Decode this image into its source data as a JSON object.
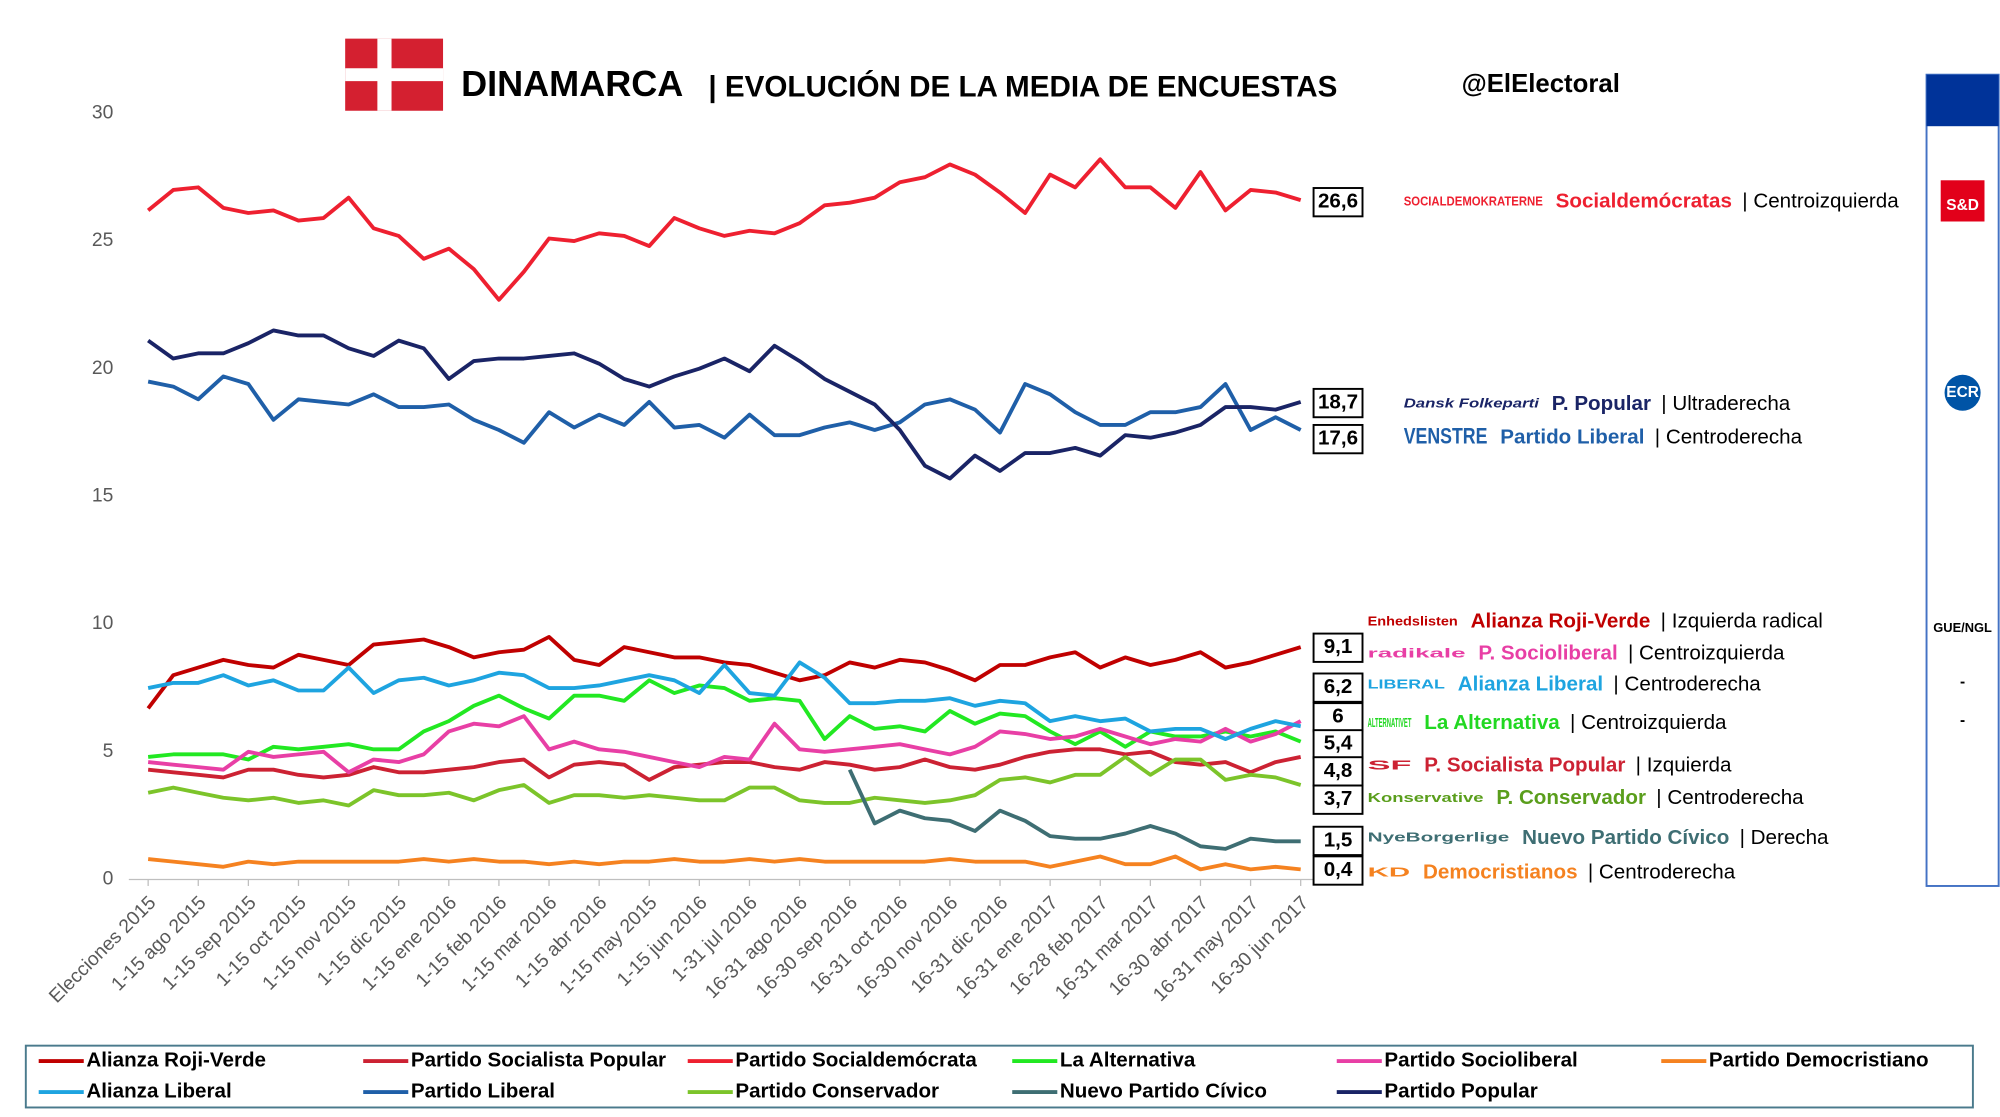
{
  "chart_data": {
    "type": "line",
    "title": "DINAMARCA",
    "subtitle": "| EVOLUCIÓN DE LA MEDIA DE ENCUESTAS",
    "source": "@ElElectoral",
    "categories": [
      "Elecciones 2015",
      null,
      "1-15 ago 2015",
      null,
      "1-15 sep 2015",
      null,
      "1-15 oct 2015",
      null,
      "1-15 nov 2015",
      null,
      "1-15 dic 2015",
      null,
      "1-15 ene 2016",
      null,
      "1-15 feb 2016",
      null,
      "1-15 mar 2016",
      null,
      "1-15 abr 2016",
      null,
      "1-15 may 2015",
      null,
      "1-15 jun 2016",
      null,
      "1-31 jul 2016",
      null,
      "16-31 ago 2016",
      null,
      "16-30 sep 2016",
      null,
      "16-31 oct 2016",
      null,
      "16-30 nov 2016",
      null,
      "16-31 dic 2016",
      null,
      "16-31 ene 2017",
      null,
      "16-28 feb 2017",
      null,
      "16-31 mar 2017",
      null,
      "16-30 abr 2017",
      null,
      "16-31 may 2017",
      null,
      "16-30 jun 2017"
    ],
    "ylim": [
      0,
      30
    ],
    "yticks": [
      0,
      5,
      10,
      15,
      20,
      25,
      30
    ],
    "grid": false,
    "series": [
      {
        "name": "Alianza Roji-Verde",
        "color": "#c00000",
        "values": [
          6.7,
          8.0,
          8.3,
          8.6,
          8.4,
          8.3,
          8.8,
          8.6,
          8.4,
          9.2,
          9.3,
          9.4,
          9.1,
          8.7,
          8.9,
          9.0,
          9.5,
          8.6,
          8.4,
          9.1,
          8.9,
          8.7,
          8.7,
          8.5,
          8.4,
          8.1,
          7.8,
          8.0,
          8.5,
          8.3,
          8.6,
          8.5,
          8.2,
          7.8,
          8.4,
          8.4,
          8.7,
          8.9,
          8.3,
          8.7,
          8.4,
          8.6,
          8.9,
          8.3,
          8.5,
          8.8,
          9.1
        ]
      },
      {
        "name": "Partido Socialista Popular",
        "color": "#cc2233",
        "values": [
          4.3,
          4.2,
          4.1,
          4.0,
          4.3,
          4.3,
          4.1,
          4.0,
          4.1,
          4.4,
          4.2,
          4.2,
          4.3,
          4.4,
          4.6,
          4.7,
          4.0,
          4.5,
          4.6,
          4.5,
          3.9,
          4.4,
          4.5,
          4.6,
          4.6,
          4.4,
          4.3,
          4.6,
          4.5,
          4.3,
          4.4,
          4.7,
          4.4,
          4.3,
          4.5,
          4.8,
          5.0,
          5.1,
          5.1,
          4.9,
          5.0,
          4.6,
          4.5,
          4.6,
          4.2,
          4.6,
          4.8
        ]
      },
      {
        "name": "Partido Socialdemócrata",
        "color": "#ee2030",
        "values": [
          26.2,
          27.0,
          27.1,
          26.3,
          26.1,
          26.2,
          25.8,
          25.9,
          26.7,
          25.5,
          25.2,
          24.3,
          24.7,
          23.9,
          22.7,
          23.8,
          25.1,
          25.0,
          25.3,
          25.2,
          24.8,
          25.9,
          25.5,
          25.2,
          25.4,
          25.3,
          25.7,
          26.4,
          26.5,
          26.7,
          27.3,
          27.5,
          28.0,
          27.6,
          26.9,
          26.1,
          27.6,
          27.1,
          28.2,
          27.1,
          27.1,
          26.3,
          27.7,
          26.2,
          27.0,
          26.9,
          26.6
        ]
      },
      {
        "name": "La Alternativa",
        "color": "#22e822",
        "values": [
          4.8,
          4.9,
          4.9,
          4.9,
          4.7,
          5.2,
          5.1,
          5.2,
          5.3,
          5.1,
          5.1,
          5.8,
          6.2,
          6.8,
          7.2,
          6.7,
          6.3,
          7.2,
          7.2,
          7.0,
          7.8,
          7.3,
          7.6,
          7.5,
          7.0,
          7.1,
          7.0,
          5.5,
          6.4,
          5.9,
          6.0,
          5.8,
          6.6,
          6.1,
          6.5,
          6.4,
          5.8,
          5.3,
          5.8,
          5.2,
          5.8,
          5.6,
          5.6,
          5.8,
          5.6,
          5.8,
          5.4
        ]
      },
      {
        "name": "Partido Socioliberal",
        "color": "#e83fa5",
        "values": [
          4.6,
          4.5,
          4.4,
          4.3,
          5.0,
          4.8,
          4.9,
          5.0,
          4.2,
          4.7,
          4.6,
          4.9,
          5.8,
          6.1,
          6.0,
          6.4,
          5.1,
          5.4,
          5.1,
          5.0,
          4.8,
          4.6,
          4.4,
          4.8,
          4.7,
          6.1,
          5.1,
          5.0,
          5.1,
          5.2,
          5.3,
          5.1,
          4.9,
          5.2,
          5.8,
          5.7,
          5.5,
          5.6,
          5.9,
          5.6,
          5.3,
          5.5,
          5.4,
          5.9,
          5.4,
          5.7,
          6.2
        ]
      },
      {
        "name": "Partido Democristiano",
        "color": "#f58220",
        "values": [
          0.8,
          0.7,
          0.6,
          0.5,
          0.7,
          0.6,
          0.7,
          0.7,
          0.7,
          0.7,
          0.7,
          0.8,
          0.7,
          0.8,
          0.7,
          0.7,
          0.6,
          0.7,
          0.6,
          0.7,
          0.7,
          0.8,
          0.7,
          0.7,
          0.8,
          0.7,
          0.8,
          0.7,
          0.7,
          0.7,
          0.7,
          0.7,
          0.8,
          0.7,
          0.7,
          0.7,
          0.5,
          0.7,
          0.9,
          0.6,
          0.6,
          0.9,
          0.4,
          0.6,
          0.4,
          0.5,
          0.4
        ]
      },
      {
        "name": "Alianza Liberal",
        "color": "#1ea4e0",
        "values": [
          7.5,
          7.7,
          7.7,
          8.0,
          7.6,
          7.8,
          7.4,
          7.4,
          8.3,
          7.3,
          7.8,
          7.9,
          7.6,
          7.8,
          8.1,
          8.0,
          7.5,
          7.5,
          7.6,
          7.8,
          8.0,
          7.8,
          7.3,
          8.4,
          7.3,
          7.2,
          8.5,
          7.9,
          6.9,
          6.9,
          7.0,
          7.0,
          7.1,
          6.8,
          7.0,
          6.9,
          6.2,
          6.4,
          6.2,
          6.3,
          5.8,
          5.9,
          5.9,
          5.5,
          5.9,
          6.2,
          6.0
        ]
      },
      {
        "name": "Partido Liberal",
        "color": "#1f5fa8",
        "values": [
          19.5,
          19.3,
          18.8,
          19.7,
          19.4,
          18.0,
          18.8,
          18.7,
          18.6,
          19.0,
          18.5,
          18.5,
          18.6,
          18.0,
          17.6,
          17.1,
          18.3,
          17.7,
          18.2,
          17.8,
          18.7,
          17.7,
          17.8,
          17.3,
          18.2,
          17.4,
          17.4,
          17.7,
          17.9,
          17.6,
          17.9,
          18.6,
          18.8,
          18.4,
          17.5,
          19.4,
          19.0,
          18.3,
          17.8,
          17.8,
          18.3,
          18.3,
          18.5,
          19.4,
          17.6,
          18.1,
          17.6
        ]
      },
      {
        "name": "Partido Conservador",
        "color": "#7cc42a",
        "values": [
          3.4,
          3.6,
          3.4,
          3.2,
          3.1,
          3.2,
          3.0,
          3.1,
          2.9,
          3.5,
          3.3,
          3.3,
          3.4,
          3.1,
          3.5,
          3.7,
          3.0,
          3.3,
          3.3,
          3.2,
          3.3,
          3.2,
          3.1,
          3.1,
          3.6,
          3.6,
          3.1,
          3.0,
          3.0,
          3.2,
          3.1,
          3.0,
          3.1,
          3.3,
          3.9,
          4.0,
          3.8,
          4.1,
          4.1,
          4.8,
          4.1,
          4.7,
          4.7,
          3.9,
          4.1,
          4.0,
          3.7
        ]
      },
      {
        "name": "Nuevo Partido Cívico",
        "color": "#3e6e73",
        "values": [
          null,
          null,
          null,
          null,
          null,
          null,
          null,
          null,
          null,
          null,
          null,
          null,
          null,
          null,
          null,
          null,
          null,
          null,
          null,
          null,
          null,
          null,
          null,
          null,
          null,
          null,
          null,
          null,
          4.3,
          2.2,
          2.7,
          2.4,
          2.3,
          1.9,
          2.7,
          2.3,
          1.7,
          1.6,
          1.6,
          1.8,
          2.1,
          1.8,
          1.3,
          1.2,
          1.6,
          1.5,
          1.5
        ]
      },
      {
        "name": "Partido Popular",
        "color": "#1a2466",
        "values": [
          21.1,
          20.4,
          20.6,
          20.6,
          21.0,
          21.5,
          21.3,
          21.3,
          20.8,
          20.5,
          21.1,
          20.8,
          19.6,
          20.3,
          20.4,
          20.4,
          20.5,
          20.6,
          20.2,
          19.6,
          19.3,
          19.7,
          20.0,
          20.4,
          19.9,
          20.9,
          20.3,
          19.6,
          19.1,
          18.6,
          17.6,
          16.2,
          15.7,
          16.6,
          16.0,
          16.7,
          16.7,
          16.9,
          16.6,
          17.4,
          17.3,
          17.5,
          17.8,
          18.5,
          18.5,
          18.4,
          18.7
        ]
      }
    ],
    "annotations": [
      {
        "label": "26,6",
        "logo": "SOCIALDEMOKRATERNE",
        "name": "Socialdemócratas",
        "ideology": "| Centroizquierda",
        "color": "#ee2030"
      },
      {
        "label": "18,7",
        "logo": "Dansk Folkeparti",
        "name": "P. Popular",
        "ideology": "| Ultraderecha",
        "color": "#1a2466"
      },
      {
        "label": "17,6",
        "logo": "VENSTRE",
        "name": "Partido Liberal",
        "ideology": "| Centroderecha",
        "color": "#1f5fa8"
      },
      {
        "label": "9,1",
        "logo": "Enhedslisten",
        "name": "Alianza Roji-Verde",
        "ideology": "| Izquierda radical",
        "color": "#c00000"
      },
      {
        "label": "6,2",
        "logo": "radikale",
        "name": "P. Socioliberal",
        "ideology": "| Centroizquierda",
        "color": "#e83fa5"
      },
      {
        "label": "6",
        "logo": "LIBERAL",
        "name": "Alianza Liberal",
        "ideology": "| Centroderecha",
        "color": "#1ea4e0"
      },
      {
        "label": "5,4",
        "logo": "ALTERNATIVET",
        "name": "La Alternativa",
        "ideology": "| Centroizquierda",
        "color": "#22d822"
      },
      {
        "label": "4,8",
        "logo": "SF",
        "name": "P. Socialista Popular",
        "ideology": "| Izquierda",
        "color": "#cc2233"
      },
      {
        "label": "3,7",
        "logo": "Konservative",
        "name": "P. Conservador",
        "ideology": "| Centroderecha",
        "color": "#5a9e1c"
      },
      {
        "label": "1,5",
        "logo": "NyeBorgerlige",
        "name": "Nuevo Partido Cívico",
        "ideology": "| Derecha",
        "color": "#3e6e73"
      },
      {
        "label": "0,4",
        "logo": "KD",
        "name": "Democristianos",
        "ideology": "| Centroderecha",
        "color": "#f58220"
      }
    ],
    "eu_groups": [
      "S&D",
      "ECR",
      "GUE/NGL",
      "-",
      "-"
    ]
  }
}
